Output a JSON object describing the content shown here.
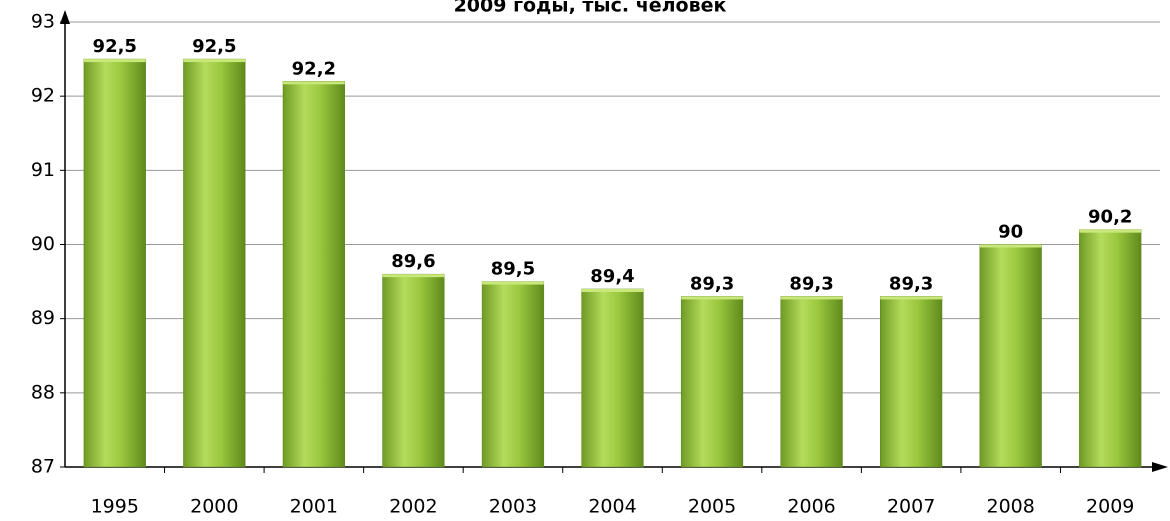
{
  "chart_data": {
    "type": "bar",
    "title": "2009 годы, тыс. человек",
    "categories": [
      "1995",
      "2000",
      "2001",
      "2002",
      "2003",
      "2004",
      "2005",
      "2006",
      "2007",
      "2008",
      "2009"
    ],
    "values": [
      92.5,
      92.5,
      92.2,
      89.6,
      89.5,
      89.4,
      89.3,
      89.3,
      89.3,
      90,
      90.2
    ],
    "value_labels": [
      "92,5",
      "92,5",
      "92,2",
      "89,6",
      "89,5",
      "89,4",
      "89,3",
      "89,3",
      "89,3",
      "90",
      "90,2"
    ],
    "color": "#9bc83f",
    "ylim": [
      87,
      93
    ],
    "yticks": [
      87,
      88,
      89,
      90,
      91,
      92,
      93
    ],
    "grid": true
  }
}
